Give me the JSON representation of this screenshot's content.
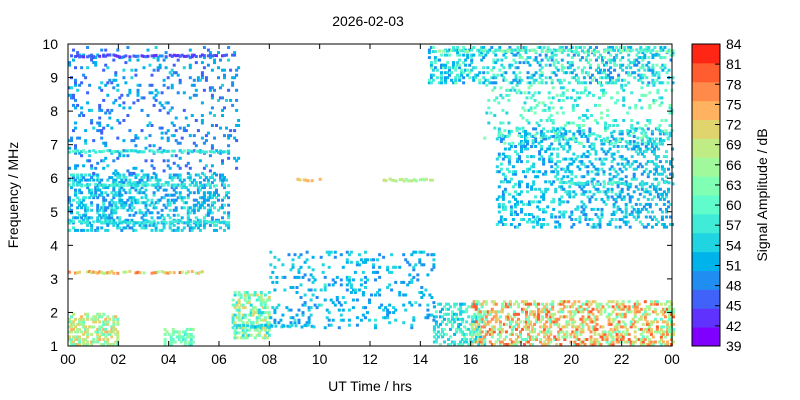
{
  "chart_data": {
    "type": "heatmap",
    "title": "2026-02-03",
    "xlabel": "UT Time / hrs",
    "ylabel": "Frequency / MHz",
    "colorbar_label": "Signal Amplitude / dB",
    "xlim": [
      0,
      24
    ],
    "ylim": [
      1,
      10
    ],
    "x_ticks": [
      "00",
      "02",
      "04",
      "06",
      "08",
      "10",
      "12",
      "14",
      "16",
      "18",
      "20",
      "22",
      "00"
    ],
    "y_ticks": [
      "1",
      "2",
      "3",
      "4",
      "5",
      "6",
      "7",
      "8",
      "9",
      "10"
    ],
    "colorbar_range": [
      39,
      84
    ],
    "colorbar_ticks": [
      "39",
      "42",
      "45",
      "48",
      "51",
      "54",
      "57",
      "60",
      "63",
      "66",
      "69",
      "72",
      "75",
      "78",
      "81",
      "84"
    ],
    "colorbar_colors": [
      "#7f00ff",
      "#5f32fe",
      "#4062f9",
      "#208df2",
      "#00b4eb",
      "#20d4e2",
      "#40ebd8",
      "#60fccc",
      "#80feb3",
      "#a0fa9c",
      "#c0ec85",
      "#e0d46e",
      "#ffb360",
      "#ff8a4a",
      "#ff5d2f",
      "#ff2616"
    ],
    "echo_regions": [
      {
        "t": [
          0.0,
          6.4
        ],
        "f": [
          4.4,
          6.1
        ],
        "db": [
          48,
          58
        ],
        "density": 0.35
      },
      {
        "t": [
          0.0,
          6.8
        ],
        "f": [
          6.1,
          9.9
        ],
        "db": [
          45,
          54
        ],
        "density": 0.1
      },
      {
        "t": [
          0.0,
          2.0
        ],
        "f": [
          1.0,
          1.9
        ],
        "db": [
          60,
          74
        ],
        "density": 0.5
      },
      {
        "t": [
          3.8,
          5.0
        ],
        "f": [
          1.0,
          1.5
        ],
        "db": [
          58,
          66
        ],
        "density": 0.5
      },
      {
        "t": [
          6.5,
          8.0
        ],
        "f": [
          1.2,
          2.6
        ],
        "db": [
          54,
          72
        ],
        "density": 0.5
      },
      {
        "t": [
          8.0,
          14.5
        ],
        "f": [
          1.5,
          3.8
        ],
        "db": [
          48,
          56
        ],
        "density": 0.12
      },
      {
        "t": [
          14.5,
          16.5
        ],
        "f": [
          1.0,
          2.2
        ],
        "db": [
          52,
          62
        ],
        "density": 0.4
      },
      {
        "t": [
          16.0,
          24.0
        ],
        "f": [
          1.0,
          2.3
        ],
        "db": [
          60,
          81
        ],
        "density": 0.45
      },
      {
        "t": [
          14.3,
          24.0
        ],
        "f": [
          8.8,
          9.9
        ],
        "db": [
          48,
          62
        ],
        "density": 0.3
      },
      {
        "t": [
          17.0,
          24.0
        ],
        "f": [
          4.5,
          7.5
        ],
        "db": [
          48,
          58
        ],
        "density": 0.25
      },
      {
        "t": [
          16.5,
          24.0
        ],
        "f": [
          7.0,
          8.8
        ],
        "db": [
          54,
          64
        ],
        "density": 0.12
      }
    ],
    "trace_lines": [
      {
        "t": [
          0.0,
          5.4
        ],
        "f": 3.15,
        "db": [
          66,
          80
        ]
      },
      {
        "t": [
          0.0,
          6.4
        ],
        "f": 5.75,
        "db": [
          54,
          60
        ]
      },
      {
        "t": [
          0.0,
          6.4
        ],
        "f": 4.65,
        "db": [
          54,
          58
        ]
      },
      {
        "t": [
          0.0,
          6.4
        ],
        "f": 6.75,
        "db": [
          54,
          60
        ]
      },
      {
        "t": [
          6.6,
          9.8
        ],
        "f": 1.55,
        "db": [
          52,
          56
        ]
      },
      {
        "t": [
          19.5,
          24.0
        ],
        "f": 5.8,
        "db": [
          54,
          60
        ]
      },
      {
        "t": [
          0.0,
          6.4
        ],
        "f": 9.6,
        "db": [
          42,
          48
        ]
      },
      {
        "t": [
          14.3,
          24.0
        ],
        "f": 9.75,
        "db": [
          54,
          66
        ]
      },
      {
        "t": [
          9.0,
          10.0
        ],
        "f": 5.9,
        "db": [
          72,
          74
        ]
      },
      {
        "t": [
          12.5,
          14.5
        ],
        "f": 5.9,
        "db": [
          66,
          70
        ]
      }
    ]
  }
}
